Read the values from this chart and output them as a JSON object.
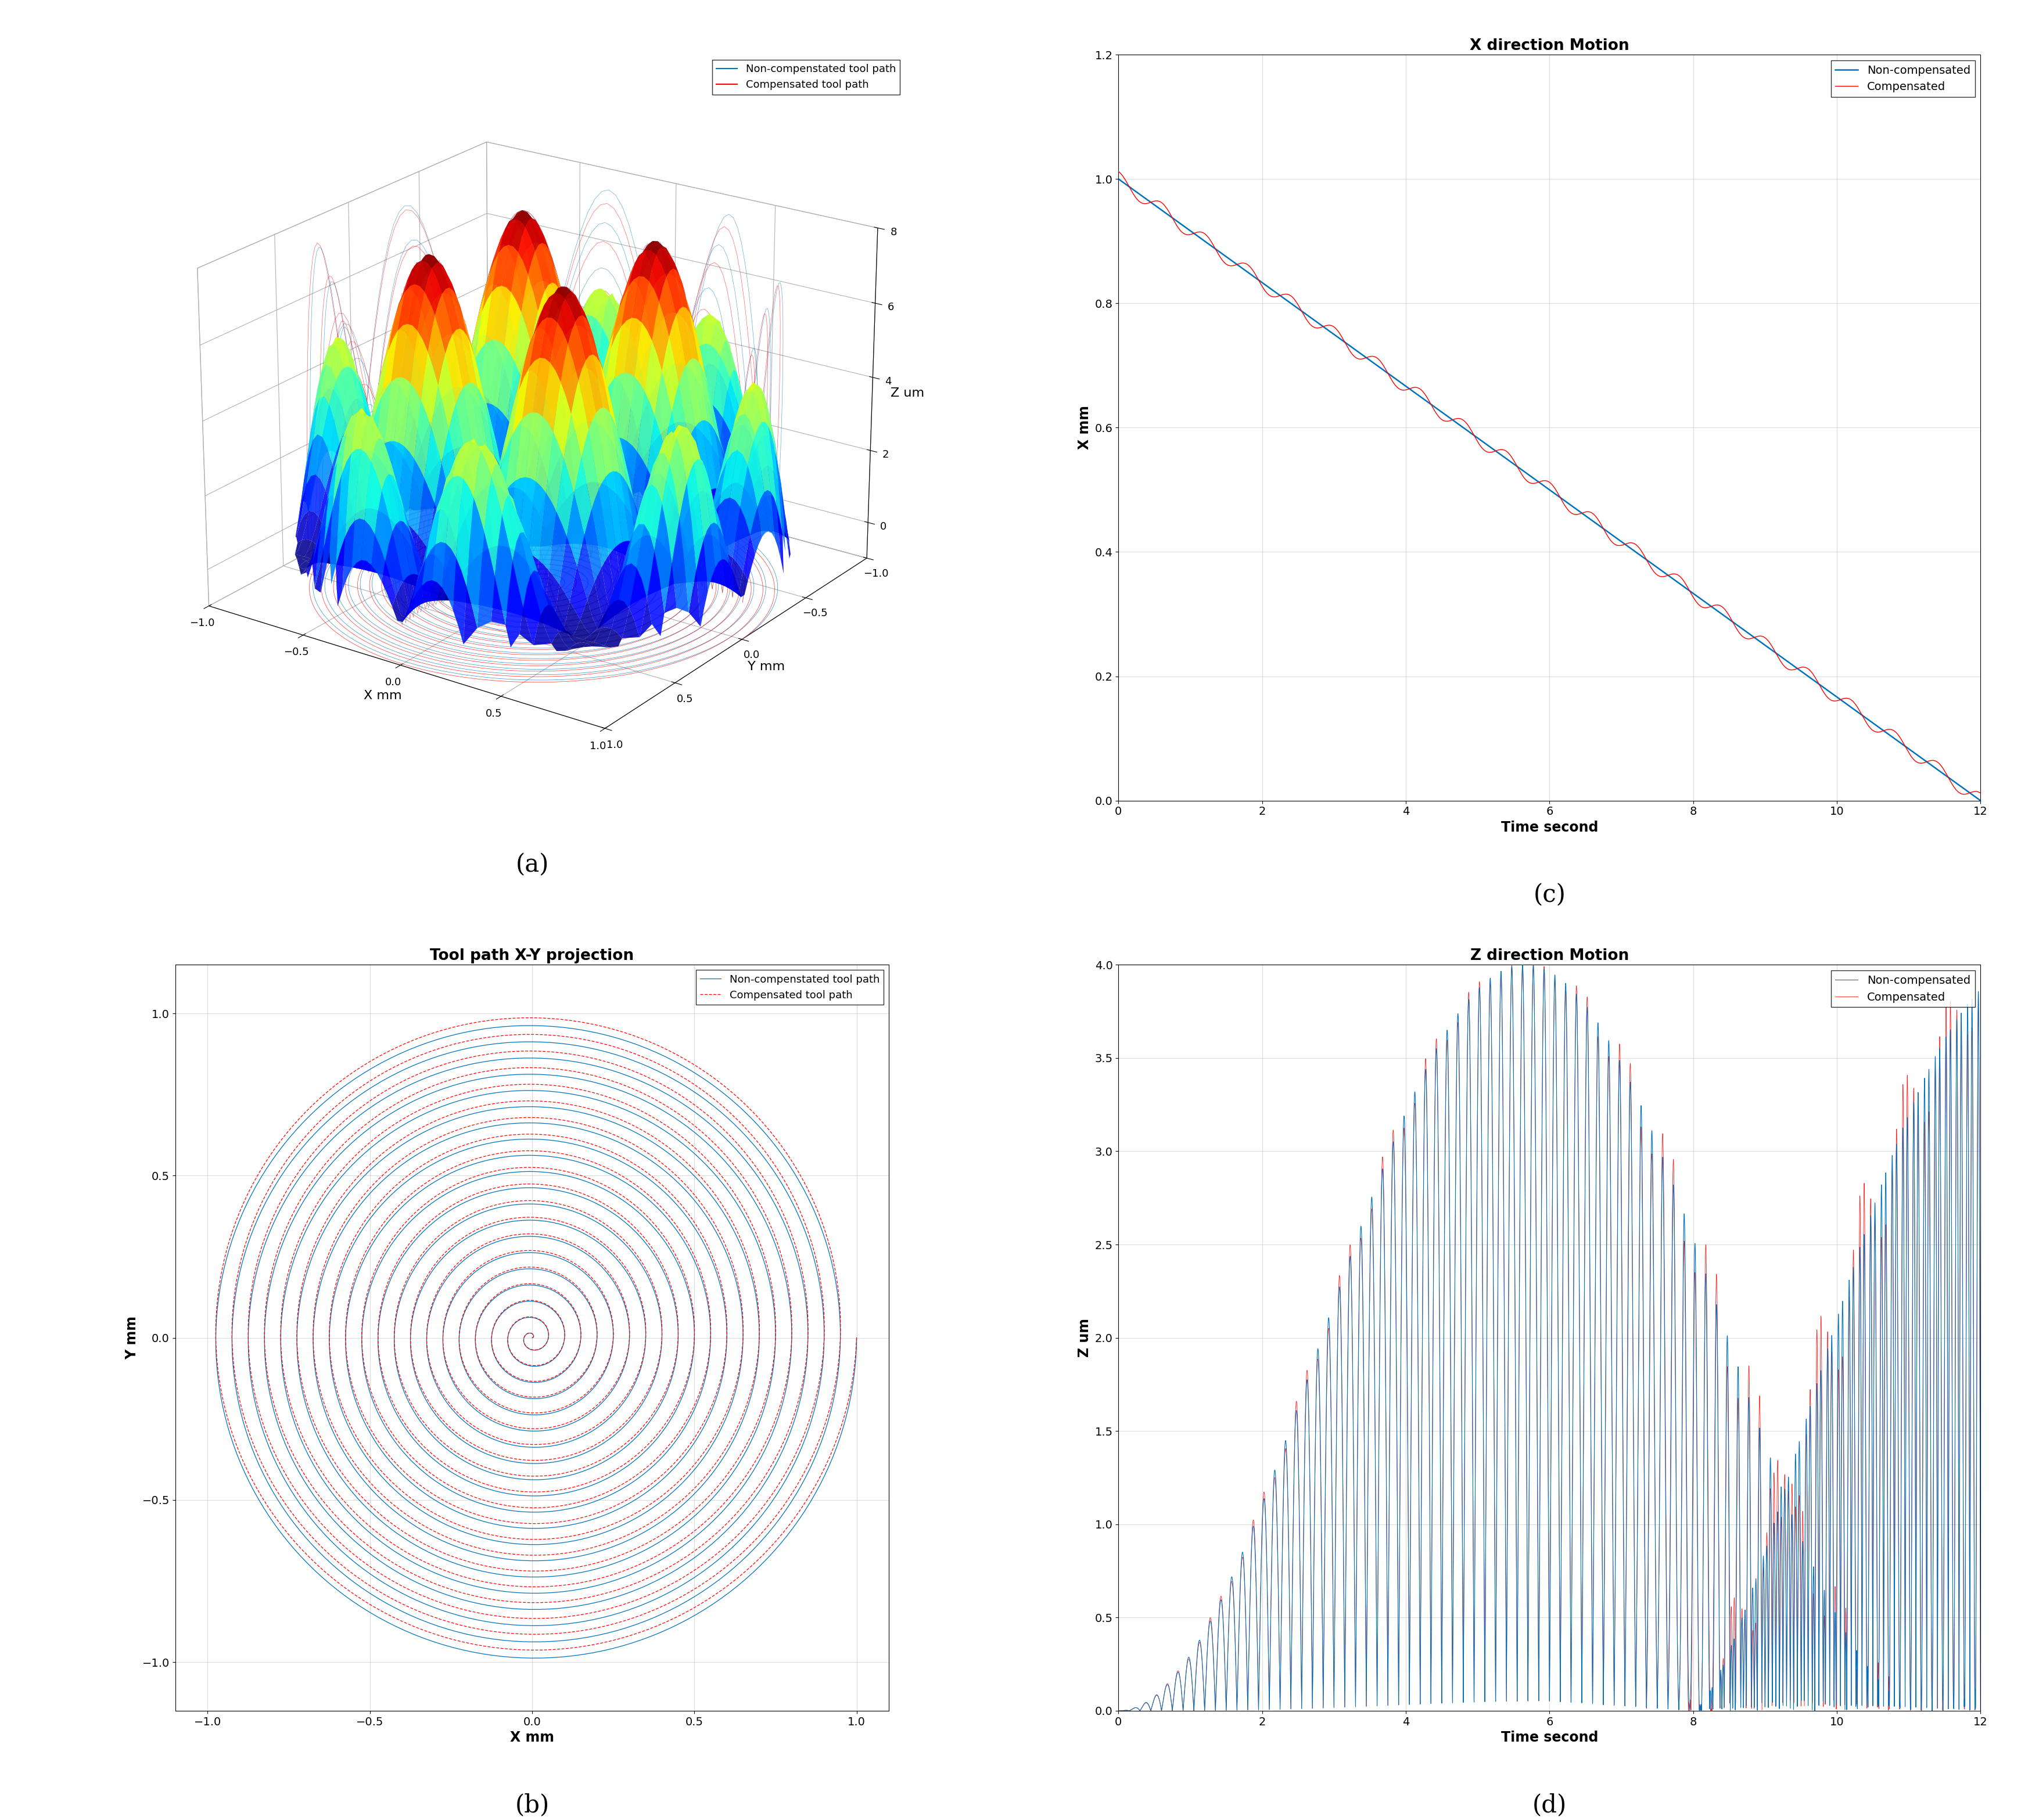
{
  "title_a": "(a)",
  "title_b": "(b)",
  "title_c": "(c)",
  "title_d": "(d)",
  "panel_c_title": "X direction Motion",
  "panel_d_title": "Z direction Motion",
  "panel_b_title": "Tool path X-Y projection",
  "panel_c_xlabel": "Time second",
  "panel_c_ylabel": "X mm",
  "panel_d_xlabel": "Time second",
  "panel_d_ylabel": "Z um",
  "panel_b_xlabel": "X mm",
  "panel_b_ylabel": "Y mm",
  "panel_a_xlabel": "X mm",
  "panel_a_ylabel": "Y mm",
  "panel_a_zlabel": "Z um",
  "panel_a_legend1": "Non-compenstated tool path",
  "panel_a_legend2": "Compensated tool path",
  "panel_b_legend1": "Non-compenstated tool path",
  "panel_b_legend2": "Compensated tool path",
  "panel_c_legend1": "Non-compensated",
  "panel_c_legend2": "Compensated",
  "panel_d_legend1": "Non-compensated",
  "panel_d_legend2": "Compensated",
  "color_blue": "#0072BD",
  "color_red": "#FF0000",
  "spiral_turns": 20,
  "surface_grid_n": 80,
  "time_max": 12
}
